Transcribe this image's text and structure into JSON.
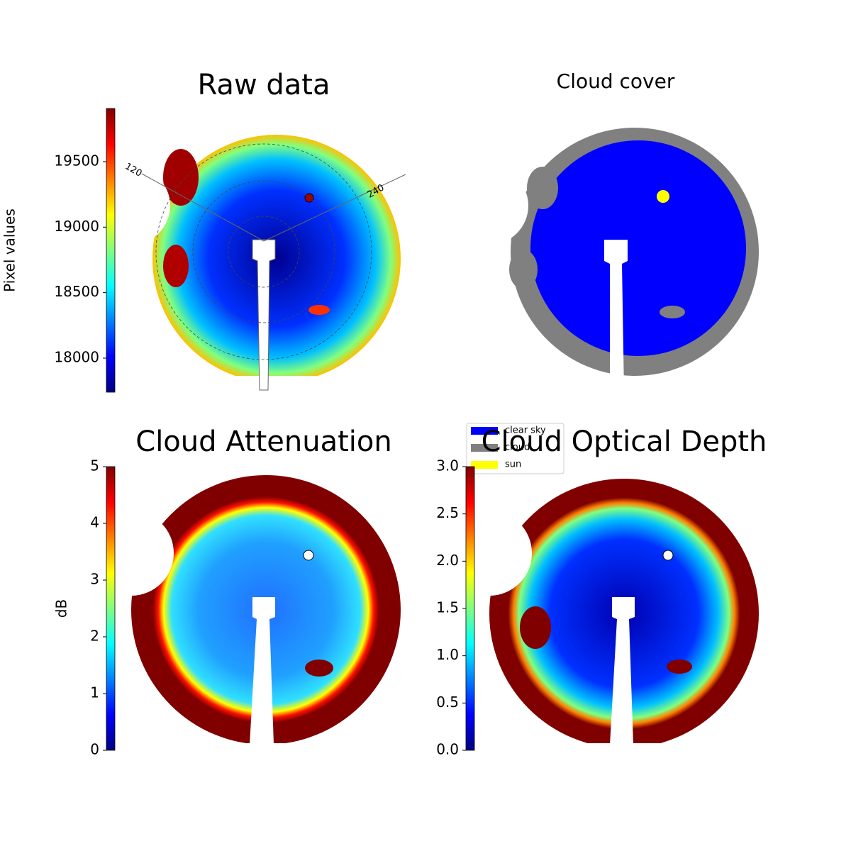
{
  "chart_data": [
    {
      "type": "image",
      "title": "Raw data",
      "colorbar_label": "Pixel values",
      "colormap": "jet",
      "ylim": [
        17740,
        19906
      ],
      "yticks": [
        18000,
        18500,
        19000,
        19500
      ],
      "azimuth_labels": [
        120,
        240
      ]
    },
    {
      "type": "image",
      "title": "Cloud cover",
      "series": [
        {
          "name": "clear sky",
          "color": "#0000ff"
        },
        {
          "name": "cloud",
          "color": "#808080"
        },
        {
          "name": "sun",
          "color": "#ffff00"
        }
      ]
    },
    {
      "type": "image",
      "title": "Cloud Attenuation",
      "colorbar_label": "dB",
      "colormap": "jet",
      "ylim": [
        0,
        5
      ],
      "yticks": [
        0,
        1,
        2,
        3,
        4,
        5
      ]
    },
    {
      "type": "image",
      "title": "Cloud Optical Depth",
      "colormap": "jet",
      "ylim": [
        0,
        3
      ],
      "yticks": [
        {
          "value": 0,
          "label": "0.0"
        },
        0.5,
        {
          "value": 1,
          "label": "1.0"
        },
        1.5,
        {
          "value": 2,
          "label": "2.0"
        },
        2.5,
        {
          "value": 3,
          "label": "3.0"
        }
      ]
    }
  ]
}
